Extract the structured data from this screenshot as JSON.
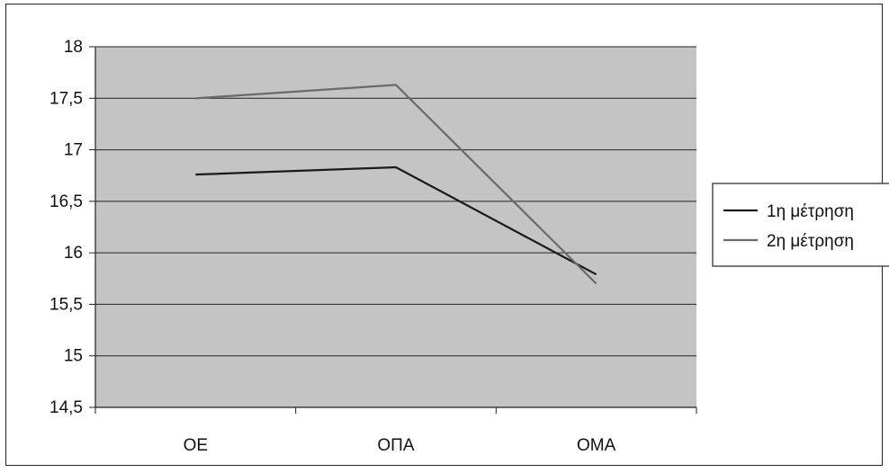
{
  "chart_data": {
    "type": "line",
    "categories": [
      "ΟΕ",
      "ΟΠΑ",
      "ΟΜΑ"
    ],
    "series": [
      {
        "name": "1η μέτρηση",
        "values": [
          16.76,
          16.83,
          15.79
        ],
        "color": "#1a1a1a"
      },
      {
        "name": "2η μέτρηση",
        "values": [
          17.5,
          17.63,
          15.7
        ],
        "color": "#6a6a6a"
      }
    ],
    "yticks": [
      "14,5",
      "15",
      "15,5",
      "16",
      "16,5",
      "17",
      "17,5",
      "18"
    ],
    "ylim": [
      14.5,
      18
    ],
    "grid": true,
    "legend": "right",
    "plot_background": "#c4c4c4"
  }
}
